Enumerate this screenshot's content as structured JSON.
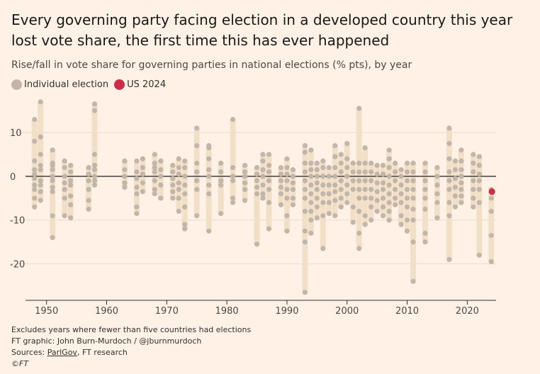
{
  "title": "Every governing party facing election in a developed country this year lost vote share, the first time this has ever happened",
  "subtitle": "Rise/fall in vote share for governing parties in national elections (% pts), by year",
  "legend": {
    "individual": "Individual election",
    "us": "US 2024"
  },
  "colors": {
    "background": "#fff1e5",
    "dot": "#c2b6ab",
    "range": "#f2dfc8",
    "highlight": "#cc2e47",
    "grid": "#e6d9ce",
    "zero": "#33302e"
  },
  "footer": {
    "note": "Excludes years where fewer than five countries had elections",
    "credit": "FT graphic: John Burn-Murdoch / @jburnmurdoch",
    "sources_label": "Sources: ",
    "sources_link": "ParlGov",
    "sources_rest": ", FT research",
    "brand": "©FT"
  },
  "chart_data": {
    "type": "scatter",
    "title": "Rise/fall in vote share for governing parties in national elections (% pts), by year",
    "xlabel": "",
    "ylabel": "% pts",
    "xlim": [
      1946.5,
      2025.5
    ],
    "ylim": [
      -28,
      16
    ],
    "xticks": [
      1950,
      1960,
      1970,
      1980,
      1990,
      2000,
      2010,
      2020
    ],
    "yticks": [
      10,
      0,
      -10,
      -20
    ],
    "series": [
      {
        "name": "Individual election",
        "points": [
          {
            "x": 1948,
            "values": [
              13,
              8,
              3.5,
              1.5,
              0.5,
              -0.5,
              -2,
              -3,
              -5,
              -7
            ]
          },
          {
            "x": 1949,
            "values": [
              17,
              9,
              5,
              2.5,
              1.5,
              -1,
              -2,
              -3.5,
              -5.5
            ]
          },
          {
            "x": 1951,
            "values": [
              6,
              3,
              2.5,
              1.5,
              0,
              -1,
              -2.5,
              -3.5,
              -9,
              -14
            ]
          },
          {
            "x": 1953,
            "values": [
              3.5,
              2,
              0,
              -1.5,
              -3,
              -5,
              -9
            ]
          },
          {
            "x": 1954,
            "values": [
              2.5,
              1,
              -1,
              -2,
              -4.5,
              -6.5,
              -9.5
            ]
          },
          {
            "x": 1957,
            "values": [
              2,
              0.5,
              -1,
              -3,
              -5.5,
              -7.5
            ]
          },
          {
            "x": 1958,
            "values": [
              16.5,
              15,
              5,
              2.5,
              1.5,
              0,
              -1,
              -2
            ]
          },
          {
            "x": 1963,
            "values": [
              3.5,
              1.5,
              0,
              -1.5,
              -2.5
            ]
          },
          {
            "x": 1965,
            "values": [
              3.5,
              1,
              -0.5,
              -2.5,
              -4,
              -7,
              -8.5
            ]
          },
          {
            "x": 1966,
            "values": [
              4,
              2,
              0.5,
              -1.5,
              -3.5
            ]
          },
          {
            "x": 1968,
            "values": [
              5,
              3,
              2,
              1,
              -1,
              -3,
              -4
            ]
          },
          {
            "x": 1969,
            "values": [
              3.5,
              1.5,
              0,
              -2,
              -5
            ]
          },
          {
            "x": 1971,
            "values": [
              2.5,
              1,
              -0.5,
              -2,
              -3.5,
              -5
            ]
          },
          {
            "x": 1972,
            "values": [
              4,
              2,
              0.5,
              -1.5,
              -3,
              -5,
              -8
            ]
          },
          {
            "x": 1973,
            "values": [
              3.5,
              2,
              0,
              -2,
              -4,
              -7,
              -11,
              -12
            ]
          },
          {
            "x": 1975,
            "values": [
              11,
              7,
              3,
              1,
              -1,
              -3,
              -9
            ]
          },
          {
            "x": 1977,
            "values": [
              7,
              6.5,
              4,
              1.5,
              0,
              -2,
              -4,
              -12.5
            ]
          },
          {
            "x": 1979,
            "values": [
              3,
              1,
              -1,
              -2,
              -8.5
            ]
          },
          {
            "x": 1981,
            "values": [
              13,
              2,
              0,
              -1,
              -5,
              -6
            ]
          },
          {
            "x": 1983,
            "values": [
              2.5,
              1,
              0,
              -1.5,
              -3,
              -5.5
            ]
          },
          {
            "x": 1985,
            "values": [
              2,
              0.5,
              -1,
              -2.5,
              -4,
              -15.5
            ]
          },
          {
            "x": 1986,
            "values": [
              5,
              3.5,
              1.5,
              0,
              -2,
              -4,
              -5
            ]
          },
          {
            "x": 1987,
            "values": [
              5,
              2.5,
              1,
              -1,
              -3,
              -6,
              -12
            ]
          },
          {
            "x": 1989,
            "values": [
              2,
              0.5,
              -1,
              -2.5,
              -4,
              -6.5
            ]
          },
          {
            "x": 1990,
            "values": [
              4,
              2,
              0.5,
              -1,
              -3,
              -5,
              -9,
              -12.5
            ]
          },
          {
            "x": 1991,
            "values": [
              1.5,
              0,
              -1.5,
              -3,
              -5,
              -6.5
            ]
          },
          {
            "x": 1993,
            "values": [
              7,
              5.5,
              3,
              1,
              -1,
              -3,
              -5,
              -8,
              -12.5,
              -15,
              -26.5
            ]
          },
          {
            "x": 1994,
            "values": [
              6,
              3,
              1.5,
              0,
              -2,
              -4,
              -6,
              -8,
              -10,
              -13
            ]
          },
          {
            "x": 1995,
            "values": [
              3,
              1.5,
              0,
              -1.5,
              -3,
              -5,
              -7,
              -9.5
            ]
          },
          {
            "x": 1996,
            "values": [
              3.5,
              2,
              0,
              -2,
              -4,
              -6,
              -9,
              -16.5
            ]
          },
          {
            "x": 1997,
            "values": [
              2,
              0,
              -2,
              -4,
              -6,
              -8.5
            ]
          },
          {
            "x": 1998,
            "values": [
              7,
              4.5,
              2,
              0,
              -2,
              -3.5,
              -5.5,
              -9
            ]
          },
          {
            "x": 1999,
            "values": [
              5,
              3,
              1,
              -1,
              -3,
              -5,
              -7
            ]
          },
          {
            "x": 2000,
            "values": [
              7.5,
              4,
              2,
              0,
              -2,
              -4,
              -6
            ]
          },
          {
            "x": 2001,
            "values": [
              3,
              1,
              -1,
              -3,
              -7,
              -10.5
            ]
          },
          {
            "x": 2002,
            "values": [
              15.5,
              3,
              1,
              -1,
              -3,
              -5,
              -8,
              -13,
              -16.5
            ]
          },
          {
            "x": 2003,
            "values": [
              6.5,
              3,
              1,
              -1,
              -3,
              -5,
              -9,
              -11
            ]
          },
          {
            "x": 2004,
            "values": [
              3,
              1,
              -1,
              -3,
              -5,
              -7,
              -10
            ]
          },
          {
            "x": 2005,
            "values": [
              2.5,
              0.5,
              -1.5,
              -3.5,
              -5.5,
              -8
            ]
          },
          {
            "x": 2006,
            "values": [
              2.5,
              0.5,
              -1.5,
              -3,
              -5,
              -7,
              -9
            ]
          },
          {
            "x": 2007,
            "values": [
              6,
              4,
              2,
              0,
              -2,
              -4,
              -6,
              -8,
              -10
            ]
          },
          {
            "x": 2008,
            "values": [
              3,
              1,
              -1,
              -3,
              -5,
              -6.5
            ]
          },
          {
            "x": 2009,
            "values": [
              1.5,
              0,
              -2,
              -4,
              -6,
              -9,
              -11
            ]
          },
          {
            "x": 2010,
            "values": [
              3,
              1,
              -1,
              -3,
              -5,
              -7,
              -10,
              -12.5
            ]
          },
          {
            "x": 2011,
            "values": [
              3,
              1,
              -1,
              -3,
              -5,
              -7.5,
              -10,
              -15,
              -24
            ]
          },
          {
            "x": 2013,
            "values": [
              3,
              1,
              -1,
              -3,
              -5,
              -7.5,
              -13,
              -15
            ]
          },
          {
            "x": 2015,
            "values": [
              2,
              0,
              -2,
              -4,
              -6,
              -9.5
            ]
          },
          {
            "x": 2017,
            "values": [
              11,
              7.5,
              4,
              1,
              -1,
              -3,
              -6,
              -9,
              -19
            ]
          },
          {
            "x": 2018,
            "values": [
              3.5,
              1.5,
              -0.5,
              -2.5,
              -4.5,
              -7
            ]
          },
          {
            "x": 2019,
            "values": [
              6,
              3.5,
              1.5,
              0,
              -1.5,
              -3,
              -4.5,
              -6
            ]
          },
          {
            "x": 2021,
            "values": [
              5,
              3,
              1,
              -1,
              -3,
              -5,
              -7
            ]
          },
          {
            "x": 2022,
            "values": [
              4.5,
              2.5,
              0.5,
              -1,
              -3,
              -6,
              -18
            ]
          },
          {
            "x": 2024,
            "values": [
              -3,
              -5,
              -8,
              -13.5,
              -19.5
            ]
          }
        ]
      },
      {
        "name": "US 2024",
        "points": [
          {
            "x": 2024.1,
            "values": [
              -3.5
            ]
          }
        ]
      }
    ]
  }
}
